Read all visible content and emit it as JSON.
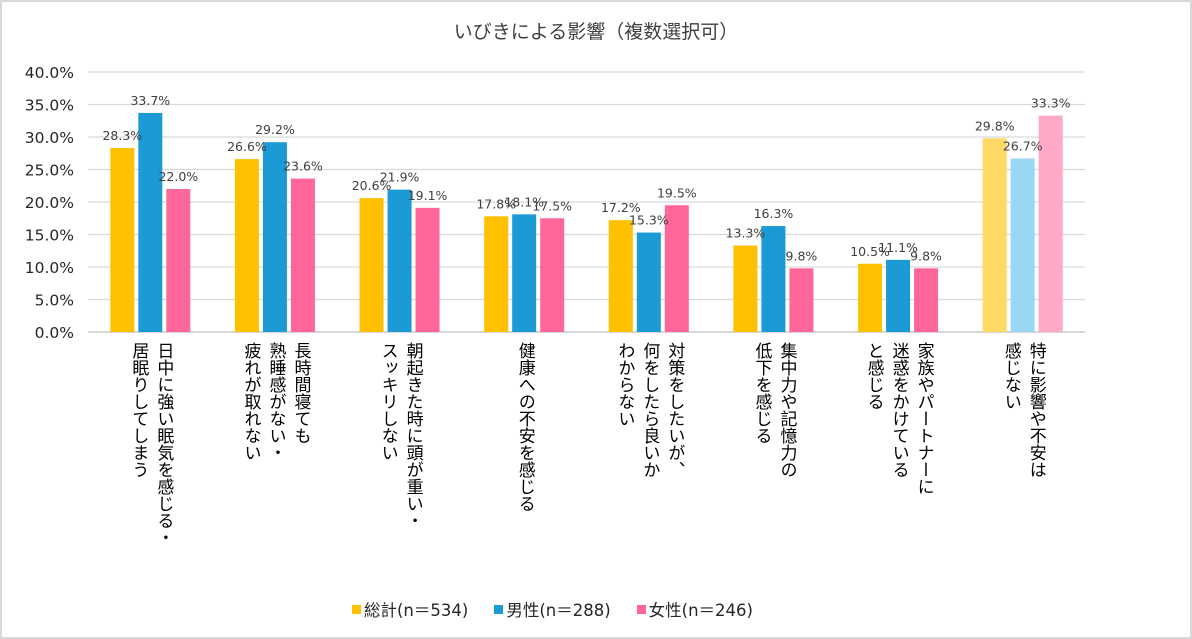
{
  "chart_data": {
    "type": "bar",
    "title": "いびきによる影響（複数選択可）",
    "xlabel": "",
    "ylabel": "",
    "ylim": [
      0,
      40
    ],
    "yticks": [
      "0.0%",
      "5.0%",
      "10.0%",
      "15.0%",
      "20.0%",
      "25.0%",
      "30.0%",
      "35.0%",
      "40.0%"
    ],
    "ytick_values": [
      0,
      5,
      10,
      15,
      20,
      25,
      30,
      35,
      40
    ],
    "grid": true,
    "legend_position": "bottom",
    "categories": [
      [
        "日中に強い眠気を感じる・",
        "居眠りしてしまう"
      ],
      [
        "長時間寝ても",
        "熟睡感がない・",
        "疲れが取れない"
      ],
      [
        "朝起きた時に頭が重い・",
        "スッキリしない"
      ],
      [
        "健康への不安を感じる"
      ],
      [
        "対策をしたいが、",
        "何をしたら良いか",
        "わからない"
      ],
      [
        "集中力や記憶力の",
        "低下を感じる"
      ],
      [
        "家族やパートナーに",
        "迷惑をかけている",
        "と感じる"
      ],
      [
        "特に影響や不安は",
        "感じない"
      ]
    ],
    "series": [
      {
        "name": "総計（n＝534）",
        "color": "#FFC000",
        "highlight_last_color": "#FFD966",
        "values": [
          28.3,
          26.6,
          20.6,
          17.8,
          17.2,
          13.3,
          10.5,
          29.8
        ],
        "labels": [
          "28.3%",
          "26.6%",
          "20.6%",
          "17.8%",
          "17.2%",
          "13.3%",
          "10.5%",
          "29.8%"
        ]
      },
      {
        "name": "男性（n＝288）",
        "color": "#1B9AD6",
        "highlight_last_color": "#9AD7F5",
        "values": [
          33.7,
          29.2,
          21.9,
          18.1,
          15.3,
          16.3,
          11.1,
          26.7
        ],
        "labels": [
          "33.7%",
          "29.2%",
          "21.9%",
          "18.1%",
          "15.3%",
          "16.3%",
          "11.1%",
          "26.7%"
        ]
      },
      {
        "name": "女性（n＝246）",
        "color": "#FF6699",
        "highlight_last_color": "#FFA8C8",
        "values": [
          22.0,
          23.6,
          19.1,
          17.5,
          19.5,
          9.8,
          9.8,
          33.3
        ],
        "labels": [
          "22.0%",
          "23.6%",
          "19.1%",
          "17.5%",
          "19.5%",
          "9.8%",
          "9.8%",
          "33.3%"
        ]
      }
    ],
    "legend": [
      {
        "label": "総計(n＝534)",
        "color": "#FFC000"
      },
      {
        "label": "男性(n＝288)",
        "color": "#1B9AD6"
      },
      {
        "label": "女性(n＝246)",
        "color": "#FF6699"
      }
    ]
  }
}
